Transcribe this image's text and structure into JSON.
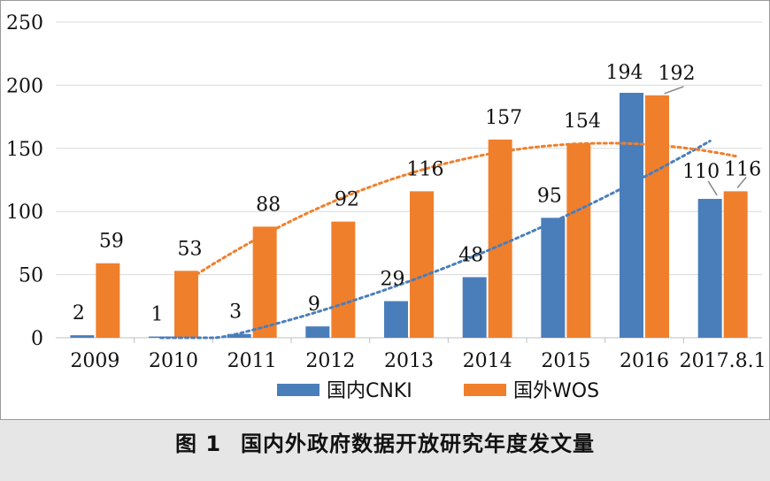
{
  "caption": {
    "label": "图 1",
    "text": "国内外政府数据开放研究年度发文量"
  },
  "chart_data": {
    "type": "bar",
    "categories": [
      "2009",
      "2010",
      "2011",
      "2012",
      "2013",
      "2014",
      "2015",
      "2016",
      "2017.8.1"
    ],
    "series": [
      {
        "name": "国内CNKI",
        "color": "#4a7ebb",
        "values": [
          2,
          1,
          3,
          9,
          29,
          48,
          95,
          194,
          110
        ]
      },
      {
        "name": "国外WOS",
        "color": "#f07f2c",
        "values": [
          59,
          53,
          88,
          92,
          116,
          157,
          154,
          192,
          116
        ]
      }
    ],
    "trendlines": [
      {
        "series": "国内CNKI",
        "style": "dotted",
        "color": "#4a7ebb",
        "from_category": "2010",
        "to_category": "2017.8.1"
      },
      {
        "series": "国外WOS",
        "style": "dotted",
        "color": "#f07f2c",
        "from_category": "2010",
        "to_category": "2017.8.1"
      }
    ],
    "y_ticks": [
      "0",
      "50",
      "100",
      "150",
      "200",
      "250"
    ],
    "ylim": [
      0,
      250
    ],
    "grid": true,
    "legend": "bottom",
    "title": "",
    "xlabel": "",
    "ylabel": ""
  }
}
